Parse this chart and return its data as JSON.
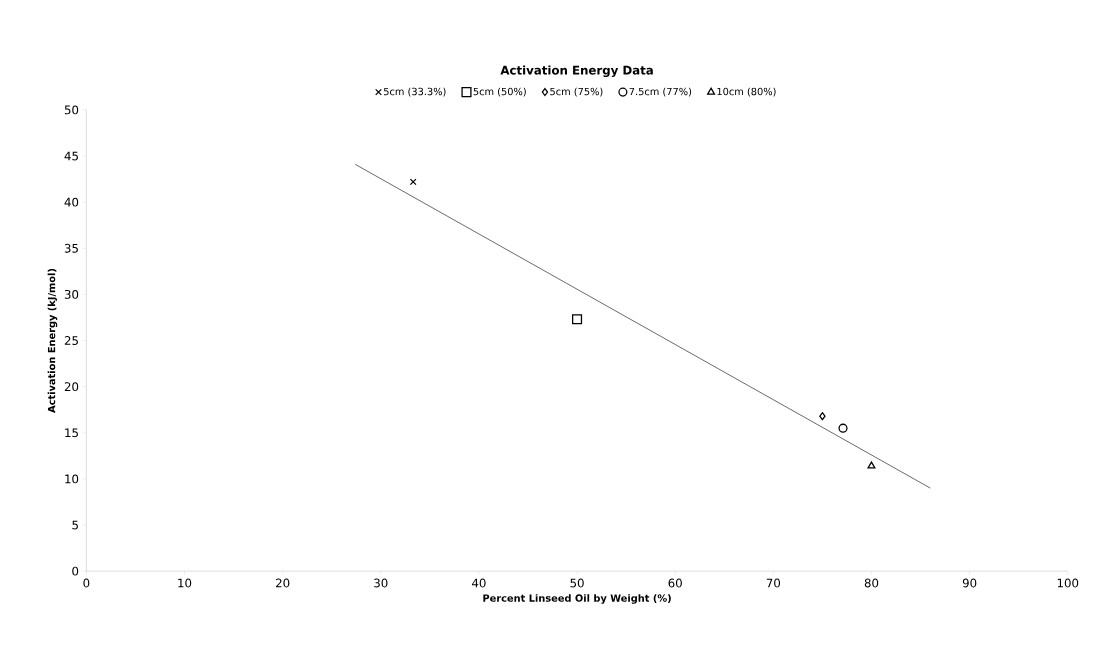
{
  "chart_data": {
    "type": "scatter",
    "title": "Activation Energy Data",
    "xlabel": "Percent Linseed Oil by Weight (%)",
    "ylabel": "Activation Energy (kJ/mol)",
    "xlim": [
      0,
      100
    ],
    "xticks": [
      0,
      10,
      20,
      30,
      40,
      50,
      60,
      70,
      80,
      90,
      100
    ],
    "ylim": [
      0,
      50
    ],
    "yticks": [
      0,
      5,
      10,
      15,
      20,
      25,
      30,
      35,
      40,
      45,
      50
    ],
    "grid": false,
    "legend": "top",
    "series": [
      {
        "name": "5cm (33.3%)",
        "color": "#000000",
        "marker": "cross",
        "x": [
          33.3
        ],
        "values": [
          42.2
        ]
      },
      {
        "name": "5cm (50%)",
        "color": "#000000",
        "marker": "square",
        "x": [
          50.0
        ],
        "values": [
          27.3
        ]
      },
      {
        "name": "5cm (75%)",
        "color": "#000000",
        "marker": "diamond",
        "x": [
          75.0
        ],
        "values": [
          16.8
        ]
      },
      {
        "name": "7.5cm (77%)",
        "color": "#000000",
        "marker": "circle",
        "x": [
          77.1
        ],
        "values": [
          15.5
        ]
      },
      {
        "name": "10cm (80%)",
        "color": "#000000",
        "marker": "triangle",
        "x": [
          80.0
        ],
        "values": [
          11.4
        ]
      },
      {
        "type": "line",
        "color": "#000000",
        "marker": "none",
        "x": [
          27.4,
          86.0
        ],
        "values": [
          44.1,
          9.0
        ]
      }
    ]
  }
}
